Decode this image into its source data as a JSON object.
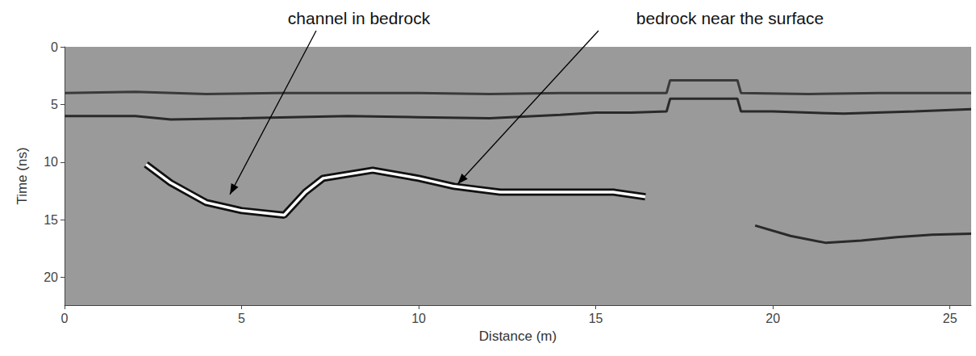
{
  "chart_data": {
    "type": "line",
    "xlabel": "Distance (m)",
    "ylabel": "Time (ns)",
    "xlim": [
      0,
      25.6
    ],
    "xticks": [
      0,
      5,
      10,
      15,
      20,
      25
    ],
    "ylim": [
      0,
      22.4
    ],
    "yticks": [
      0,
      5,
      10,
      15,
      20
    ],
    "grid": false,
    "series": [
      {
        "color": "#3a3a3a",
        "x": [
          0,
          2,
          4,
          6,
          8,
          10,
          12,
          14,
          16,
          17,
          17.1,
          19,
          19.1,
          21,
          23,
          25.6
        ],
        "values": [
          4.0,
          3.9,
          4.1,
          4.0,
          4.0,
          4.0,
          4.1,
          4.0,
          4.0,
          4.0,
          2.9,
          2.9,
          4.0,
          4.1,
          4.0,
          4.0
        ]
      },
      {
        "color": "#2a2a2a",
        "x": [
          0,
          2,
          3,
          5,
          8,
          10,
          12,
          14,
          15,
          16,
          17,
          17.1,
          19,
          19.1,
          20,
          22,
          24,
          25.6
        ],
        "values": [
          6.0,
          6.0,
          6.3,
          6.2,
          6.0,
          6.1,
          6.2,
          5.9,
          5.7,
          5.7,
          5.6,
          4.5,
          4.5,
          5.6,
          5.6,
          5.8,
          5.6,
          5.4
        ]
      },
      {
        "color": "#ffffff",
        "x": [
          2.3,
          3.0,
          4.0,
          5.0,
          6.2,
          6.8,
          7.3,
          8.7,
          10.0,
          11.0,
          12.3,
          14.1,
          15.5,
          16.4
        ],
        "values": [
          10.2,
          11.8,
          13.5,
          14.2,
          14.6,
          12.6,
          11.4,
          10.7,
          11.4,
          12.1,
          12.6,
          12.6,
          12.6,
          13.0
        ]
      },
      {
        "color": "#2a2a2a",
        "x": [
          19.5,
          20.5,
          21.5,
          22.5,
          23.5,
          24.5,
          25.6
        ],
        "values": [
          15.5,
          16.4,
          17.0,
          16.8,
          16.5,
          16.3,
          16.2
        ]
      }
    ],
    "annotations": [
      {
        "text": "channel in bedrock",
        "x": 4.67,
        "y": 12.8
      },
      {
        "text": "bedrock near the surface",
        "x": 11.1,
        "y": 11.9
      }
    ]
  }
}
